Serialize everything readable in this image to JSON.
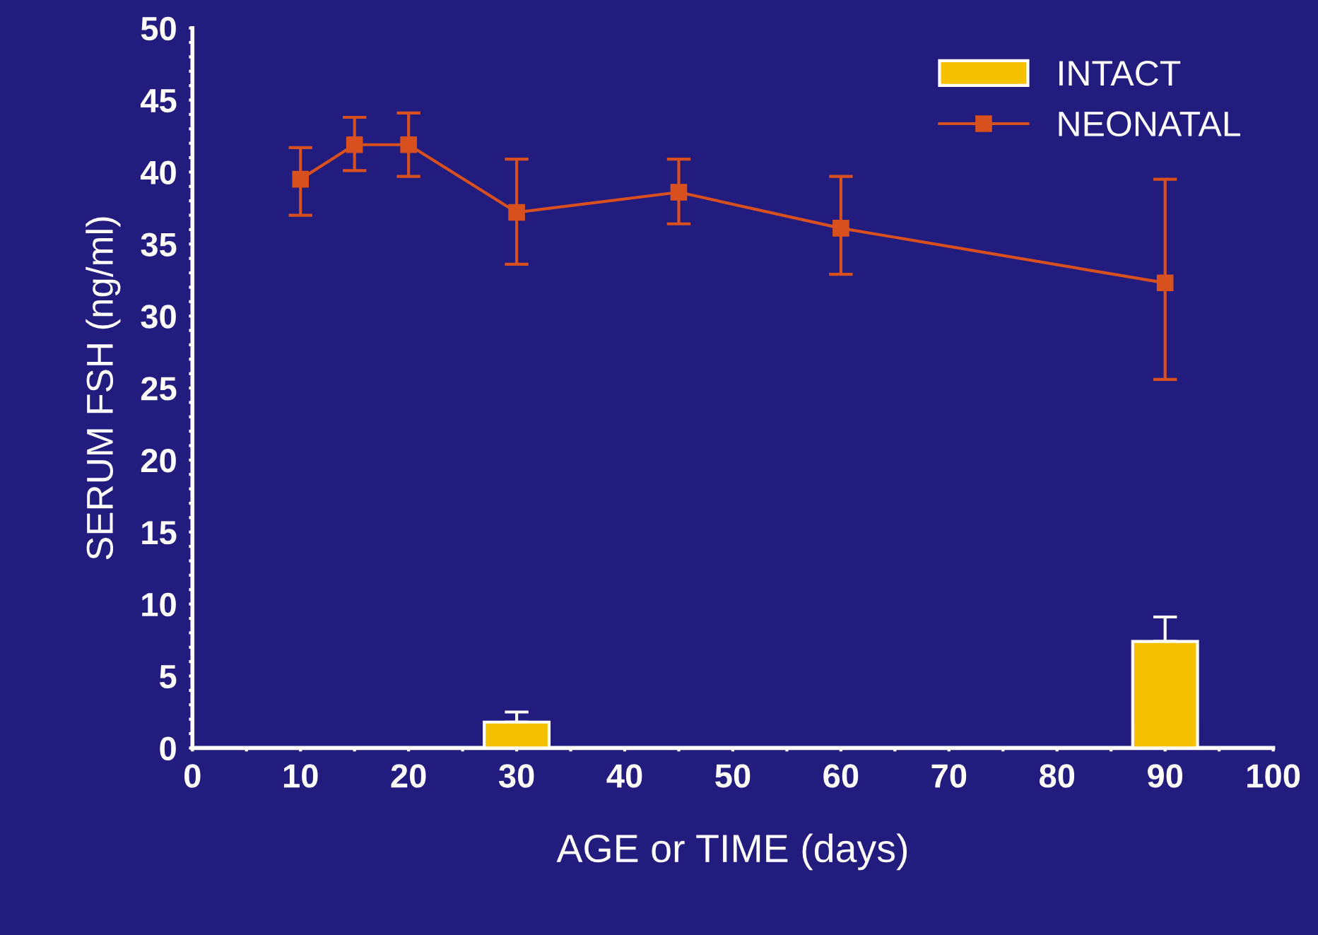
{
  "chart_data": {
    "type": "line",
    "xlabel": "AGE or TIME (days)",
    "ylabel": "SERUM FSH (ng/ml)",
    "xlim": [
      0,
      100
    ],
    "ylim": [
      0,
      50
    ],
    "xticks": [
      0,
      {
        "value": 5,
        "label": null
      },
      10,
      {
        "value": 15,
        "label": null
      },
      20,
      {
        "value": 25,
        "label": null
      },
      30,
      {
        "value": 35,
        "label": null
      },
      40,
      {
        "value": 45,
        "label": null
      },
      50,
      {
        "value": 55,
        "label": null
      },
      60,
      {
        "value": 65,
        "label": null
      },
      70,
      {
        "value": 75,
        "label": null
      },
      80,
      {
        "value": 85,
        "label": null
      },
      90,
      {
        "value": 95,
        "label": null
      },
      100
    ],
    "yticks": [
      0,
      {
        "value": 1,
        "label": null
      },
      {
        "value": 2,
        "label": null
      },
      {
        "value": 3,
        "label": null
      },
      {
        "value": 4,
        "label": null
      },
      5,
      {
        "value": 6,
        "label": null
      },
      {
        "value": 7,
        "label": null
      },
      {
        "value": 8,
        "label": null
      },
      {
        "value": 9,
        "label": null
      },
      10,
      {
        "value": 11,
        "label": null
      },
      {
        "value": 12,
        "label": null
      },
      {
        "value": 13,
        "label": null
      },
      {
        "value": 14,
        "label": null
      },
      15,
      {
        "value": 16,
        "label": null
      },
      {
        "value": 17,
        "label": null
      },
      {
        "value": 18,
        "label": null
      },
      {
        "value": 19,
        "label": null
      },
      20,
      {
        "value": 21,
        "label": null
      },
      {
        "value": 22,
        "label": null
      },
      {
        "value": 23,
        "label": null
      },
      {
        "value": 24,
        "label": null
      },
      25,
      {
        "value": 26,
        "label": null
      },
      {
        "value": 27,
        "label": null
      },
      {
        "value": 28,
        "label": null
      },
      {
        "value": 29,
        "label": null
      },
      30,
      {
        "value": 31,
        "label": null
      },
      {
        "value": 32,
        "label": null
      },
      {
        "value": 33,
        "label": null
      },
      {
        "value": 34,
        "label": null
      },
      35,
      {
        "value": 36,
        "label": null
      },
      {
        "value": 37,
        "label": null
      },
      {
        "value": 38,
        "label": null
      },
      {
        "value": 39,
        "label": null
      },
      40,
      {
        "value": 41,
        "label": null
      },
      {
        "value": 42,
        "label": null
      },
      {
        "value": 43,
        "label": null
      },
      {
        "value": 44,
        "label": null
      },
      45,
      {
        "value": 46,
        "label": null
      },
      {
        "value": 47,
        "label": null
      },
      {
        "value": 48,
        "label": null
      },
      {
        "value": 49,
        "label": null
      },
      50
    ],
    "grid": false,
    "legend": "top right",
    "marker": "square",
    "line_style": "solid",
    "series": [
      {
        "name": "INTACT",
        "type": "bar",
        "color": "#f5c000",
        "x": [
          30,
          90
        ],
        "values": [
          1.8,
          7.4
        ],
        "errors": [
          [
            1.8,
            2.5
          ],
          [
            7.4,
            9.1
          ]
        ]
      },
      {
        "name": "NEONATAL",
        "color": "#d9501f",
        "x": [
          10,
          15,
          20,
          30,
          45,
          60,
          90
        ],
        "values": [
          39.5,
          41.9,
          41.9,
          37.2,
          38.6,
          36.1,
          32.3
        ],
        "errors": [
          [
            37.0,
            41.7
          ],
          [
            40.1,
            43.8
          ],
          [
            39.7,
            44.1
          ],
          [
            33.6,
            40.9
          ],
          [
            36.4,
            40.9
          ],
          [
            32.9,
            39.7
          ],
          [
            25.6,
            39.5
          ]
        ]
      }
    ]
  }
}
